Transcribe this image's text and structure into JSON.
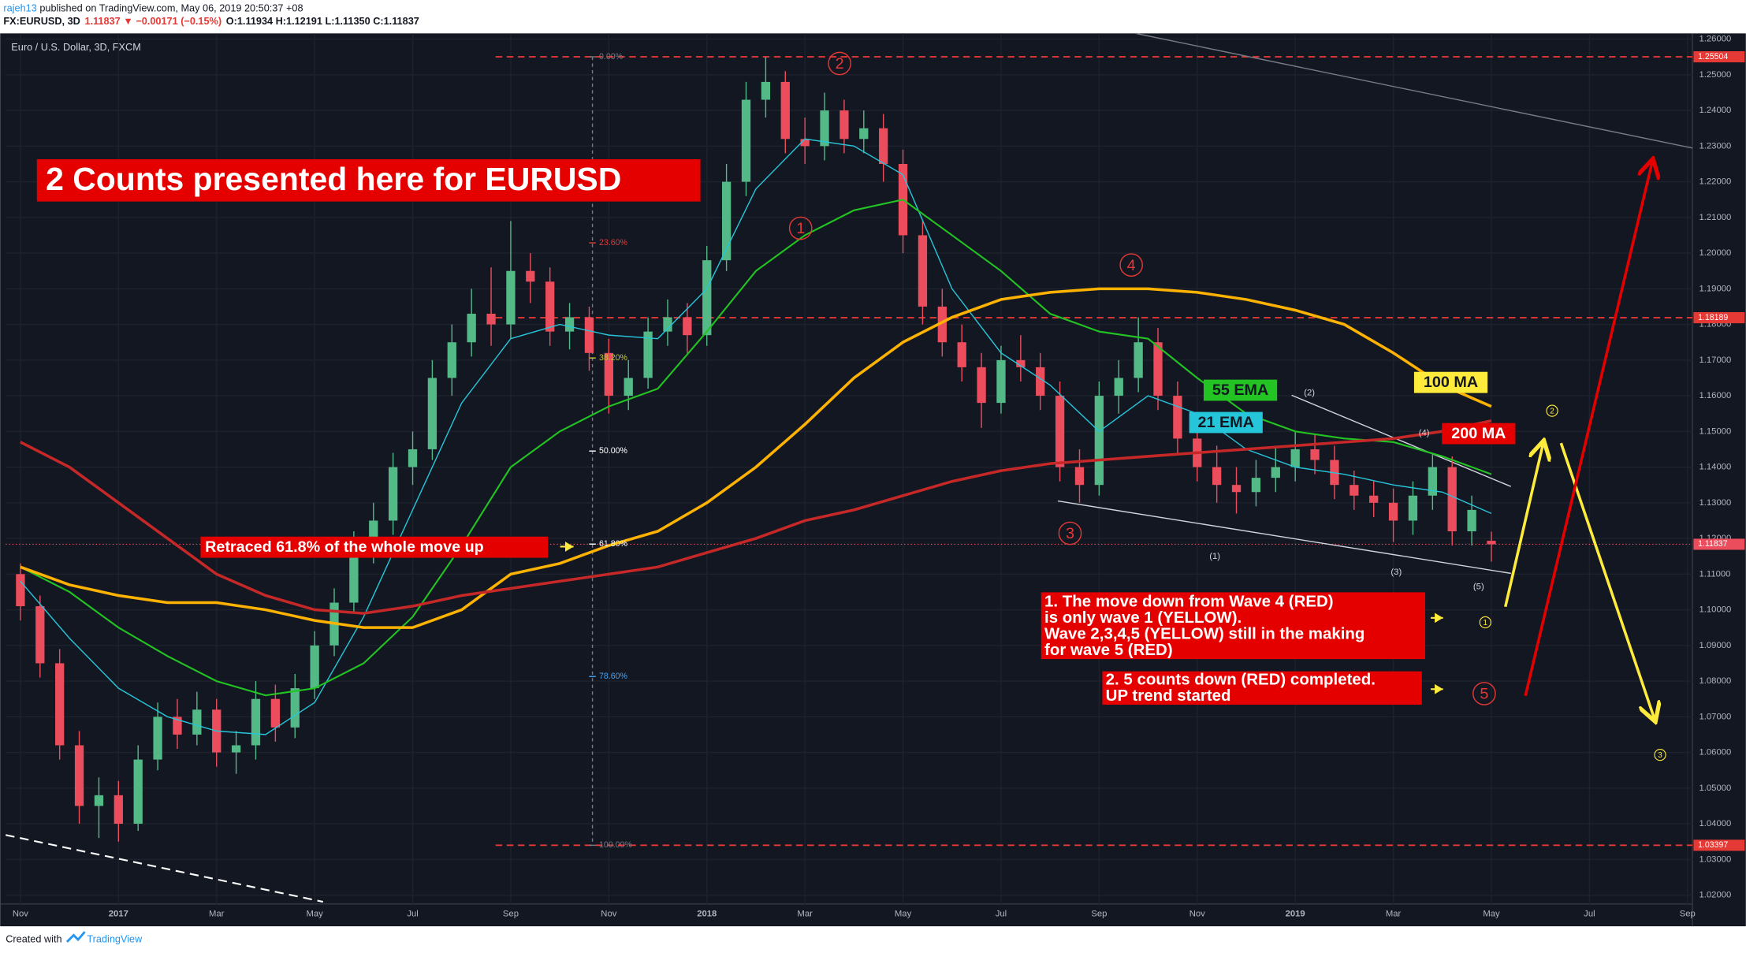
{
  "header": {
    "author": "rajeh13",
    "published": " published on TradingView.com, May 06, 2019 20:50:37 +08",
    "symbol": "FX:EURUSD, 3D",
    "change": "1.11837 ▼ −0.00171 (−0.15%)",
    "ohlc": "O:1.11934 H:1.12191 L:1.11350 C:1.11837"
  },
  "footer": {
    "created": "Created with",
    "brand": "TradingView"
  },
  "chart_data": {
    "type": "candlestick",
    "title": "Euro / U.S. Dollar, 3D, FXCM",
    "up_color": "#53b987",
    "down_color": "#eb4d5c",
    "xlim": [
      -0.3,
      34.1
    ],
    "xticks": [
      {
        "value": 0,
        "label": "Nov"
      },
      {
        "value": 2,
        "label": "2017"
      },
      {
        "value": 4,
        "label": "Mar"
      },
      {
        "value": 6,
        "label": "May"
      },
      {
        "value": 8,
        "label": "Jul"
      },
      {
        "value": 10,
        "label": "Sep"
      },
      {
        "value": 12,
        "label": "Nov"
      },
      {
        "value": 14,
        "label": "2018"
      },
      {
        "value": 16,
        "label": "Mar"
      },
      {
        "value": 18,
        "label": "May"
      },
      {
        "value": 20,
        "label": "Jul"
      },
      {
        "value": 22,
        "label": "Sep"
      },
      {
        "value": 24,
        "label": "Nov"
      },
      {
        "value": 26,
        "label": "2019"
      },
      {
        "value": 28,
        "label": "Mar"
      },
      {
        "value": 30,
        "label": "May"
      },
      {
        "value": 32,
        "label": "Jul"
      },
      {
        "value": 34,
        "label": "Sep"
      }
    ],
    "ylim": [
      1.0175,
      1.2616
    ],
    "yticks": [
      {
        "value": 1.02,
        "label": "1.02000"
      },
      {
        "value": 1.03,
        "label": "1.03000"
      },
      {
        "value": 1.04,
        "label": "1.04000"
      },
      {
        "value": 1.05,
        "label": "1.05000"
      },
      {
        "value": 1.06,
        "label": "1.06000"
      },
      {
        "value": 1.07,
        "label": "1.07000"
      },
      {
        "value": 1.08,
        "label": "1.08000"
      },
      {
        "value": 1.09,
        "label": "1.09000"
      },
      {
        "value": 1.1,
        "label": "1.10000"
      },
      {
        "value": 1.11,
        "label": "1.11000"
      },
      {
        "value": 1.12,
        "label": "1.12000"
      },
      {
        "value": 1.13,
        "label": "1.13000"
      },
      {
        "value": 1.14,
        "label": "1.14000"
      },
      {
        "value": 1.15,
        "label": "1.15000"
      },
      {
        "value": 1.16,
        "label": "1.16000"
      },
      {
        "value": 1.17,
        "label": "1.17000"
      },
      {
        "value": 1.18,
        "label": "1.18000"
      },
      {
        "value": 1.19,
        "label": "1.19000"
      },
      {
        "value": 1.2,
        "label": "1.20000"
      },
      {
        "value": 1.21,
        "label": "1.21000"
      },
      {
        "value": 1.22,
        "label": "1.22000"
      },
      {
        "value": 1.23,
        "label": "1.23000"
      },
      {
        "value": 1.24,
        "label": "1.24000"
      },
      {
        "value": 1.25,
        "label": "1.25000"
      },
      {
        "value": 1.26,
        "label": "1.26000"
      }
    ],
    "grid": true,
    "x": [
      0,
      0.4,
      0.8,
      1.2,
      1.6,
      2,
      2.4,
      2.8,
      3.2,
      3.6,
      4,
      4.4,
      4.8,
      5.2,
      5.6,
      6,
      6.4,
      6.8,
      7.2,
      7.6,
      8,
      8.4,
      8.8,
      9.2,
      9.6,
      10,
      10.4,
      10.8,
      11.2,
      11.6,
      12,
      12.4,
      12.8,
      13.2,
      13.6,
      14,
      14.4,
      14.8,
      15.2,
      15.6,
      16,
      16.4,
      16.8,
      17.2,
      17.6,
      18,
      18.4,
      18.8,
      19.2,
      19.6,
      20,
      20.4,
      20.8,
      21.2,
      21.6,
      22,
      22.4,
      22.8,
      23.2,
      23.6,
      24,
      24.4,
      24.8,
      25.2,
      25.6,
      26,
      26.4,
      26.8,
      27.2,
      27.6,
      28,
      28.4,
      28.8,
      29.2,
      29.6,
      30
    ],
    "ohlc": [
      [
        1.11,
        1.113,
        1.097,
        1.101
      ],
      [
        1.101,
        1.104,
        1.081,
        1.085
      ],
      [
        1.085,
        1.089,
        1.058,
        1.062
      ],
      [
        1.062,
        1.066,
        1.04,
        1.045
      ],
      [
        1.045,
        1.053,
        1.036,
        1.048
      ],
      [
        1.048,
        1.052,
        1.035,
        1.04
      ],
      [
        1.04,
        1.062,
        1.038,
        1.058
      ],
      [
        1.058,
        1.074,
        1.055,
        1.07
      ],
      [
        1.07,
        1.075,
        1.061,
        1.065
      ],
      [
        1.065,
        1.077,
        1.062,
        1.072
      ],
      [
        1.072,
        1.075,
        1.056,
        1.06
      ],
      [
        1.06,
        1.066,
        1.054,
        1.062
      ],
      [
        1.062,
        1.08,
        1.058,
        1.075
      ],
      [
        1.075,
        1.079,
        1.063,
        1.067
      ],
      [
        1.067,
        1.082,
        1.064,
        1.078
      ],
      [
        1.078,
        1.094,
        1.075,
        1.09
      ],
      [
        1.09,
        1.106,
        1.087,
        1.102
      ],
      [
        1.102,
        1.122,
        1.099,
        1.118
      ],
      [
        1.118,
        1.13,
        1.113,
        1.125
      ],
      [
        1.125,
        1.144,
        1.121,
        1.14
      ],
      [
        1.14,
        1.15,
        1.135,
        1.145
      ],
      [
        1.145,
        1.17,
        1.142,
        1.165
      ],
      [
        1.165,
        1.18,
        1.16,
        1.175
      ],
      [
        1.175,
        1.19,
        1.171,
        1.183
      ],
      [
        1.183,
        1.196,
        1.174,
        1.18
      ],
      [
        1.18,
        1.209,
        1.176,
        1.195
      ],
      [
        1.195,
        1.2,
        1.186,
        1.192
      ],
      [
        1.192,
        1.196,
        1.174,
        1.178
      ],
      [
        1.178,
        1.186,
        1.173,
        1.182
      ],
      [
        1.182,
        1.185,
        1.167,
        1.172
      ],
      [
        1.172,
        1.176,
        1.155,
        1.16
      ],
      [
        1.16,
        1.17,
        1.156,
        1.165
      ],
      [
        1.165,
        1.182,
        1.162,
        1.178
      ],
      [
        1.178,
        1.187,
        1.174,
        1.182
      ],
      [
        1.182,
        1.186,
        1.172,
        1.177
      ],
      [
        1.177,
        1.202,
        1.174,
        1.198
      ],
      [
        1.198,
        1.225,
        1.195,
        1.22
      ],
      [
        1.22,
        1.248,
        1.216,
        1.243
      ],
      [
        1.243,
        1.255,
        1.238,
        1.248
      ],
      [
        1.248,
        1.251,
        1.228,
        1.232
      ],
      [
        1.232,
        1.238,
        1.225,
        1.23
      ],
      [
        1.23,
        1.245,
        1.226,
        1.24
      ],
      [
        1.24,
        1.243,
        1.228,
        1.232
      ],
      [
        1.232,
        1.24,
        1.228,
        1.235
      ],
      [
        1.235,
        1.239,
        1.22,
        1.225
      ],
      [
        1.225,
        1.229,
        1.2,
        1.205
      ],
      [
        1.205,
        1.209,
        1.18,
        1.185
      ],
      [
        1.185,
        1.19,
        1.171,
        1.175
      ],
      [
        1.175,
        1.18,
        1.164,
        1.168
      ],
      [
        1.168,
        1.172,
        1.151,
        1.158
      ],
      [
        1.158,
        1.174,
        1.155,
        1.17
      ],
      [
        1.17,
        1.177,
        1.164,
        1.168
      ],
      [
        1.168,
        1.172,
        1.156,
        1.16
      ],
      [
        1.16,
        1.164,
        1.136,
        1.14
      ],
      [
        1.14,
        1.145,
        1.13,
        1.135
      ],
      [
        1.135,
        1.164,
        1.132,
        1.16
      ],
      [
        1.16,
        1.17,
        1.155,
        1.165
      ],
      [
        1.165,
        1.182,
        1.161,
        1.175
      ],
      [
        1.175,
        1.179,
        1.156,
        1.16
      ],
      [
        1.16,
        1.164,
        1.144,
        1.148
      ],
      [
        1.148,
        1.152,
        1.136,
        1.14
      ],
      [
        1.14,
        1.146,
        1.13,
        1.135
      ],
      [
        1.135,
        1.14,
        1.127,
        1.133
      ],
      [
        1.133,
        1.142,
        1.129,
        1.137
      ],
      [
        1.137,
        1.146,
        1.133,
        1.14
      ],
      [
        1.14,
        1.15,
        1.136,
        1.145
      ],
      [
        1.145,
        1.149,
        1.138,
        1.142
      ],
      [
        1.142,
        1.146,
        1.131,
        1.135
      ],
      [
        1.135,
        1.139,
        1.128,
        1.132
      ],
      [
        1.132,
        1.136,
        1.126,
        1.13
      ],
      [
        1.13,
        1.134,
        1.119,
        1.125
      ],
      [
        1.125,
        1.136,
        1.121,
        1.132
      ],
      [
        1.132,
        1.144,
        1.128,
        1.14
      ],
      [
        1.14,
        1.143,
        1.118,
        1.122
      ],
      [
        1.122,
        1.132,
        1.118,
        1.128
      ],
      [
        1.11934,
        1.12191,
        1.1135,
        1.11837
      ]
    ],
    "series": [
      {
        "name": "21 EMA",
        "color": "#26c6da",
        "x": [
          0,
          1,
          2,
          3,
          4,
          5,
          6,
          7,
          8,
          9,
          10,
          11,
          12,
          13,
          14,
          15,
          16,
          17,
          18,
          19,
          20,
          21,
          22,
          23,
          24,
          25,
          26,
          27,
          28,
          29,
          30
        ],
        "values": [
          1.108,
          1.092,
          1.078,
          1.07,
          1.066,
          1.065,
          1.074,
          1.098,
          1.128,
          1.158,
          1.176,
          1.18,
          1.177,
          1.176,
          1.19,
          1.218,
          1.232,
          1.23,
          1.222,
          1.19,
          1.172,
          1.163,
          1.15,
          1.16,
          1.155,
          1.145,
          1.14,
          1.138,
          1.135,
          1.133,
          1.127
        ]
      },
      {
        "name": "55 EMA",
        "color": "#22c322",
        "x": [
          0,
          1,
          2,
          3,
          4,
          5,
          6,
          7,
          8,
          9,
          10,
          11,
          12,
          13,
          14,
          15,
          16,
          17,
          18,
          19,
          20,
          21,
          22,
          23,
          24,
          25,
          26,
          27,
          28,
          29,
          30
        ],
        "values": [
          1.112,
          1.105,
          1.095,
          1.087,
          1.08,
          1.076,
          1.078,
          1.085,
          1.098,
          1.118,
          1.14,
          1.15,
          1.157,
          1.162,
          1.178,
          1.195,
          1.205,
          1.212,
          1.215,
          1.205,
          1.195,
          1.183,
          1.178,
          1.176,
          1.165,
          1.155,
          1.15,
          1.148,
          1.147,
          1.143,
          1.138
        ]
      },
      {
        "name": "100 MA",
        "color": "#ffb300",
        "x": [
          0,
          1,
          2,
          3,
          4,
          5,
          6,
          7,
          8,
          9,
          10,
          11,
          12,
          13,
          14,
          15,
          16,
          17,
          18,
          19,
          20,
          21,
          22,
          23,
          24,
          25,
          26,
          27,
          28,
          29,
          30
        ],
        "values": [
          1.112,
          1.107,
          1.104,
          1.102,
          1.102,
          1.1,
          1.097,
          1.095,
          1.095,
          1.1,
          1.11,
          1.113,
          1.118,
          1.122,
          1.13,
          1.14,
          1.152,
          1.165,
          1.175,
          1.182,
          1.187,
          1.189,
          1.19,
          1.19,
          1.189,
          1.187,
          1.184,
          1.18,
          1.172,
          1.163,
          1.157
        ]
      },
      {
        "name": "200 MA",
        "color": "#c62828",
        "x": [
          0,
          1,
          2,
          3,
          4,
          5,
          6,
          7,
          8,
          9,
          10,
          11,
          12,
          13,
          14,
          15,
          16,
          17,
          18,
          19,
          20,
          21,
          22,
          23,
          24,
          25,
          26,
          27,
          28,
          29,
          30
        ],
        "values": [
          1.147,
          1.14,
          1.13,
          1.12,
          1.11,
          1.104,
          1.1,
          1.099,
          1.101,
          1.104,
          1.106,
          1.108,
          1.11,
          1.112,
          1.116,
          1.12,
          1.125,
          1.128,
          1.132,
          1.136,
          1.139,
          1.141,
          1.142,
          1.143,
          1.144,
          1.145,
          1.146,
          1.147,
          1.148,
          1.15,
          1.153
        ]
      }
    ],
    "levels": [
      1.25504,
      1.18189,
      1.03397
    ],
    "level_color": "#e53935",
    "last_price": 1.11837,
    "fib": {
      "high": 1.25504,
      "low": 1.03397,
      "levels": [
        0,
        23.6,
        38.2,
        50,
        61.8,
        78.6,
        100
      ],
      "value_labels": [
        "0.00%",
        "23.60%",
        "38.20%",
        "50.00%",
        "61.80%",
        "78.60%",
        "100.00%"
      ],
      "colors": [
        "#787b86",
        "#e53935",
        "#c0ca33",
        "#ffffff",
        "#ffffff",
        "#42a5f5",
        "#787b86"
      ]
    },
    "annotations": [
      "2 Counts presented here for EURUSD",
      "Retraced 61.8% of the whole move up"
    ],
    "notes": [
      [
        "1. The move down from Wave 4 (RED)",
        "is only wave 1 (YELLOW).",
        "Wave 2,3,4,5 (YELLOW) still in the making",
        "for wave 5 (RED)"
      ],
      [
        "2. 5 counts down (RED) completed.",
        "UP trend started"
      ]
    ],
    "waves": {
      "red": [
        "1",
        "2",
        "3",
        "4",
        "5"
      ],
      "yellow": [
        "1",
        "2",
        "3"
      ],
      "minor": [
        "(1)",
        "(2)",
        "(3)",
        "(4)",
        "(5)"
      ]
    }
  }
}
